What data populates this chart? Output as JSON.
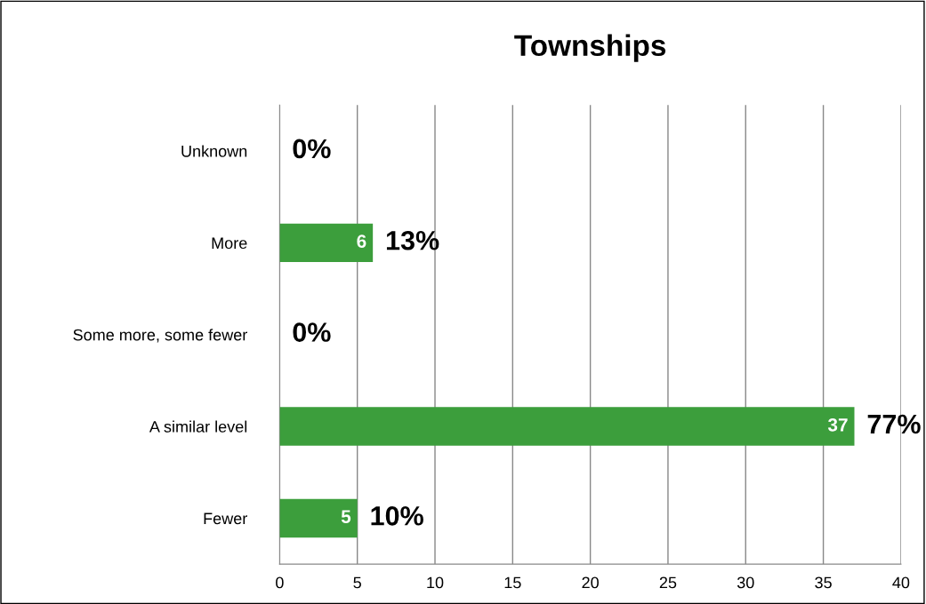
{
  "chart_data": {
    "type": "bar",
    "orientation": "horizontal",
    "title": "Townships",
    "categories": [
      "Unknown",
      "More",
      "Some more, some fewer",
      "A similar level",
      "Fewer"
    ],
    "values": [
      0,
      6,
      0,
      37,
      5
    ],
    "value_labels": [
      null,
      "6",
      null,
      "37",
      "5"
    ],
    "color": "#3c9e3c",
    "xlim": [
      0,
      40
    ],
    "xticks": [
      0,
      5,
      10,
      15,
      20,
      25,
      30,
      35,
      40
    ],
    "grid": "x",
    "legend": false,
    "annotations": [
      {
        "text": "0%",
        "x": 0,
        "y": "Unknown"
      },
      {
        "text": "13%",
        "x": 6,
        "y": "More"
      },
      {
        "text": "0%",
        "x": 0,
        "y": "Some more, some fewer"
      },
      {
        "text": "77%",
        "x": 37,
        "y": "A similar level"
      },
      {
        "text": "10%",
        "x": 5,
        "y": "Fewer"
      }
    ]
  }
}
